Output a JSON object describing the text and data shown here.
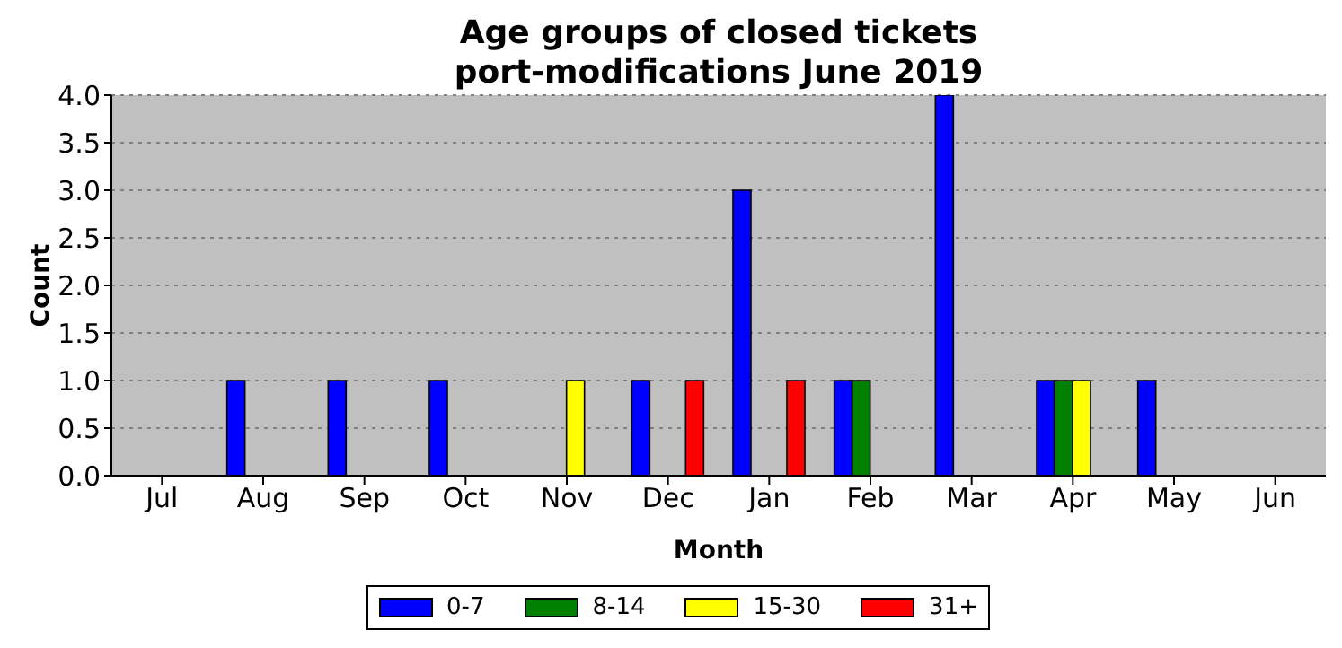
{
  "chart_data": {
    "type": "bar",
    "title": "Age groups of closed tickets\nport-modifications June 2019",
    "xlabel": "Month",
    "ylabel": "Count",
    "categories": [
      "Jul",
      "Aug",
      "Sep",
      "Oct",
      "Nov",
      "Dec",
      "Jan",
      "Feb",
      "Mar",
      "Apr",
      "May",
      "Jun"
    ],
    "series": [
      {
        "name": "0-7",
        "color": "#0000ff",
        "values": [
          0,
          1,
          1,
          1,
          0,
          1,
          3,
          1,
          4,
          1,
          1,
          0
        ]
      },
      {
        "name": "8-14",
        "color": "#008000",
        "values": [
          0,
          0,
          0,
          0,
          0,
          0,
          0,
          1,
          0,
          1,
          0,
          0
        ]
      },
      {
        "name": "15-30",
        "color": "#ffff00",
        "values": [
          0,
          0,
          0,
          0,
          1,
          0,
          0,
          0,
          0,
          1,
          0,
          0
        ]
      },
      {
        "name": "31+",
        "color": "#ff0000",
        "values": [
          0,
          0,
          0,
          0,
          0,
          1,
          1,
          0,
          0,
          0,
          0,
          0
        ]
      }
    ],
    "ylim": [
      0,
      4
    ],
    "yticks": [
      {
        "value": 0,
        "label": "0.0"
      },
      {
        "value": 0.5,
        "label": "0.5"
      },
      {
        "value": 1,
        "label": "1.0"
      },
      {
        "value": 1.5,
        "label": "1.5"
      },
      {
        "value": 2,
        "label": "2.0"
      },
      {
        "value": 2.5,
        "label": "2.5"
      },
      {
        "value": 3,
        "label": "3.0"
      },
      {
        "value": 3.5,
        "label": "3.5"
      },
      {
        "value": 4,
        "label": "4.0"
      }
    ],
    "grid": "y",
    "legend": "bottom"
  }
}
